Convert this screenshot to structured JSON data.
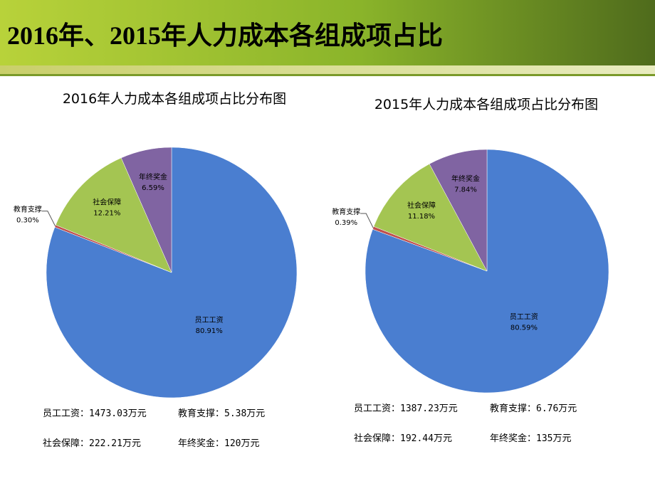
{
  "header": {
    "title": "2016年、2015年人力成本各组成项占比"
  },
  "chart_data": [
    {
      "type": "pie",
      "title": "2016年人力成本各组成项占比分布图",
      "categories": [
        "员工工资",
        "教育支撑",
        "社会保障",
        "年终奖金"
      ],
      "values": [
        80.91,
        0.3,
        12.21,
        6.59
      ],
      "value_labels": [
        "80.91%",
        "0.30%",
        "12.21%",
        "6.59%"
      ],
      "colors": [
        "#4a7ed0",
        "#c0504d",
        "#a4c552",
        "#8064a2"
      ],
      "notes": [
        "员工工资：1473.03万元",
        "教育支撑：5.38万元",
        "社会保障：222.21万元",
        "年终奖金：120万元"
      ]
    },
    {
      "type": "pie",
      "title": "2015年人力成本各组成项占比分布图",
      "categories": [
        "员工工资",
        "教育支撑",
        "社会保障",
        "年终奖金"
      ],
      "values": [
        80.59,
        0.39,
        11.18,
        7.84
      ],
      "value_labels": [
        "80.59%",
        "0.39%",
        "11.18%",
        "7.84%"
      ],
      "colors": [
        "#4a7ed0",
        "#c0504d",
        "#a4c552",
        "#8064a2"
      ],
      "notes": [
        "员工工资：1387.23万元",
        "教育支撑：6.76万元",
        "社会保障：192.44万元",
        "年终奖金：135万元"
      ]
    }
  ]
}
